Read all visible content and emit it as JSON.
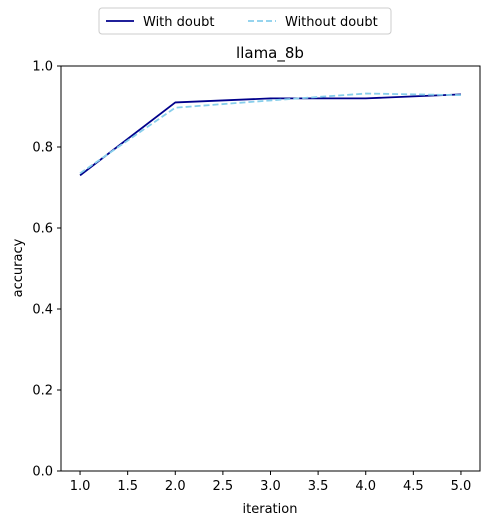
{
  "chart_data": {
    "type": "line",
    "title": "llama_8b",
    "xlabel": "iteration",
    "ylabel": "accuracy",
    "xlim": [
      0.8,
      5.2
    ],
    "ylim": [
      0.0,
      1.0
    ],
    "x_ticks": [
      "1.0",
      "1.5",
      "2.0",
      "2.5",
      "3.0",
      "3.5",
      "4.0",
      "4.5",
      "5.0"
    ],
    "y_ticks": [
      "0.0",
      "0.2",
      "0.4",
      "0.6",
      "0.8",
      "1.0"
    ],
    "grid": false,
    "legend_position": "top-center",
    "x": [
      1,
      2,
      3,
      4,
      5
    ],
    "series": [
      {
        "name": "With doubt",
        "values": [
          0.73,
          0.91,
          0.92,
          0.92,
          0.93
        ],
        "color": "#00008b",
        "style": "solid"
      },
      {
        "name": "Without doubt",
        "values": [
          0.735,
          0.897,
          0.915,
          0.932,
          0.928
        ],
        "color": "#87ceeb",
        "style": "dashed"
      }
    ]
  }
}
